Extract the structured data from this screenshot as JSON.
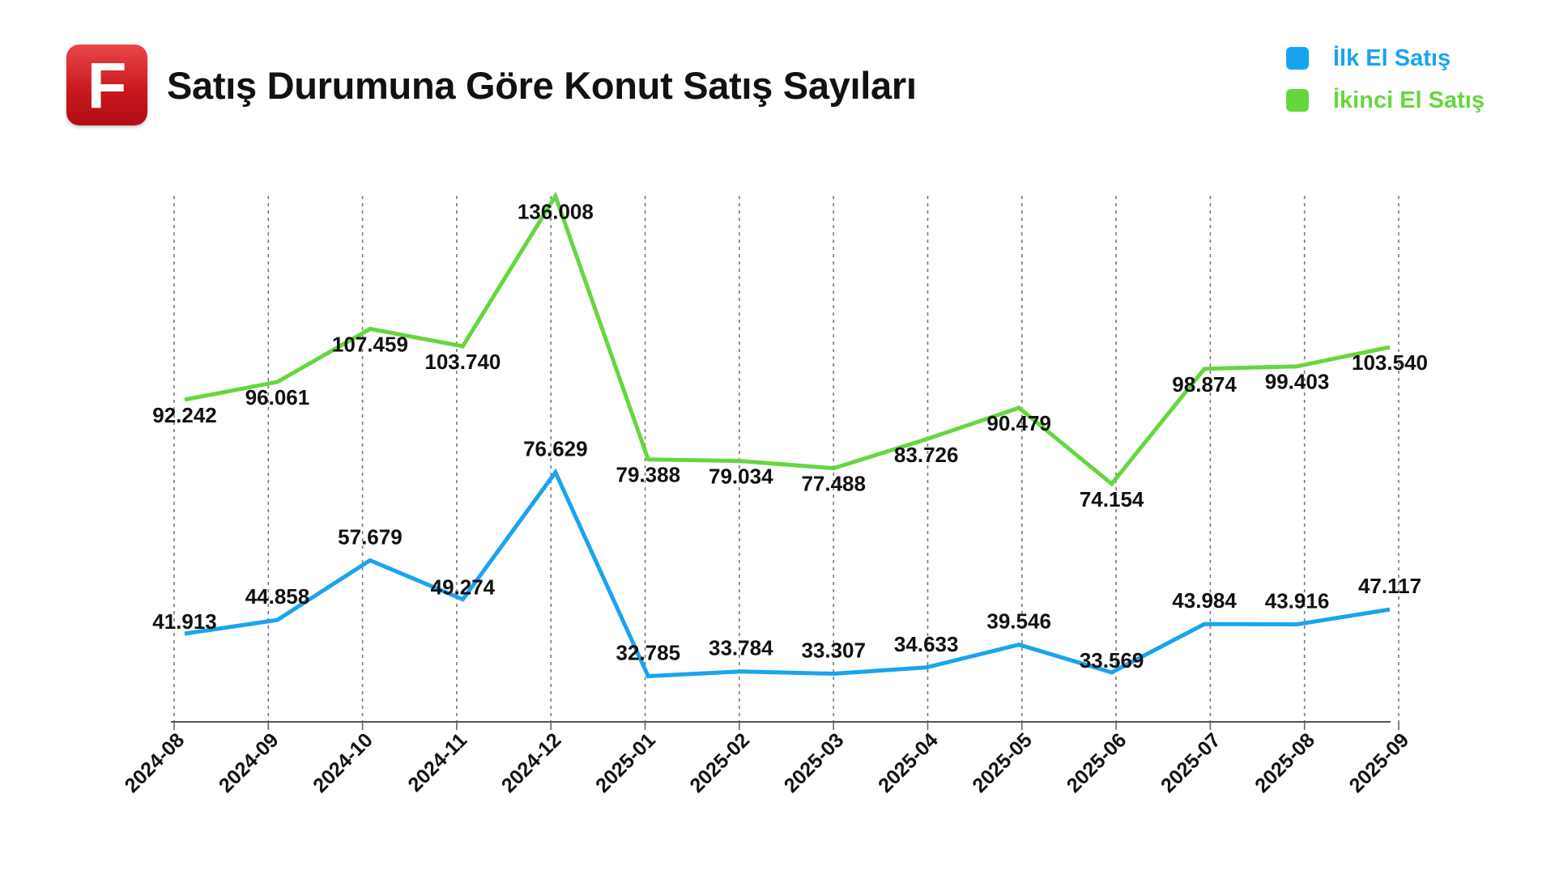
{
  "header": {
    "logo_letter": "F",
    "title": "Satış Durumuna Göre Konut Satış Sayıları"
  },
  "legend": {
    "items": [
      {
        "label": "İlk El Satış",
        "color": "#1aa3f0"
      },
      {
        "label": "İkinci El Satış",
        "color": "#66d63f"
      }
    ]
  },
  "chart_data": {
    "type": "line",
    "title": "Satış Durumuna Göre Konut Satış Sayıları",
    "xlabel": "",
    "ylabel": "",
    "categories": [
      "2024-08",
      "2024-09",
      "2024-10",
      "2024-11",
      "2024-12",
      "2025-01",
      "2025-02",
      "2025-03",
      "2025-04",
      "2025-05",
      "2025-06",
      "2025-07",
      "2025-08",
      "2025-09"
    ],
    "series": [
      {
        "name": "İlk El Satış",
        "color": "#1aa3f0",
        "values": [
          41913,
          44858,
          57679,
          49274,
          76629,
          32785,
          33784,
          33307,
          34633,
          39546,
          33569,
          43984,
          43916,
          47117
        ],
        "labels": [
          "41.913",
          "44.858",
          "57.679",
          "49.274",
          "76.629",
          "32.785",
          "33.784",
          "33.307",
          "34.633",
          "39.546",
          "33.569",
          "43.984",
          "43.916",
          "47.117"
        ]
      },
      {
        "name": "İkinci El Satış",
        "color": "#66d63f",
        "values": [
          92242,
          96061,
          107459,
          103740,
          136008,
          79388,
          79034,
          77488,
          83726,
          90479,
          74154,
          98874,
          99403,
          103540
        ],
        "labels": [
          "92.242",
          "96.061",
          "107.459",
          "103.740",
          "136.008",
          "79.388",
          "79.034",
          "77.488",
          "83.726",
          "90.479",
          "74.154",
          "98.874",
          "99.403",
          "103.540"
        ]
      }
    ],
    "grid": "vertical-dashed",
    "legend_position": "top-right",
    "axis_color": "#555555"
  }
}
